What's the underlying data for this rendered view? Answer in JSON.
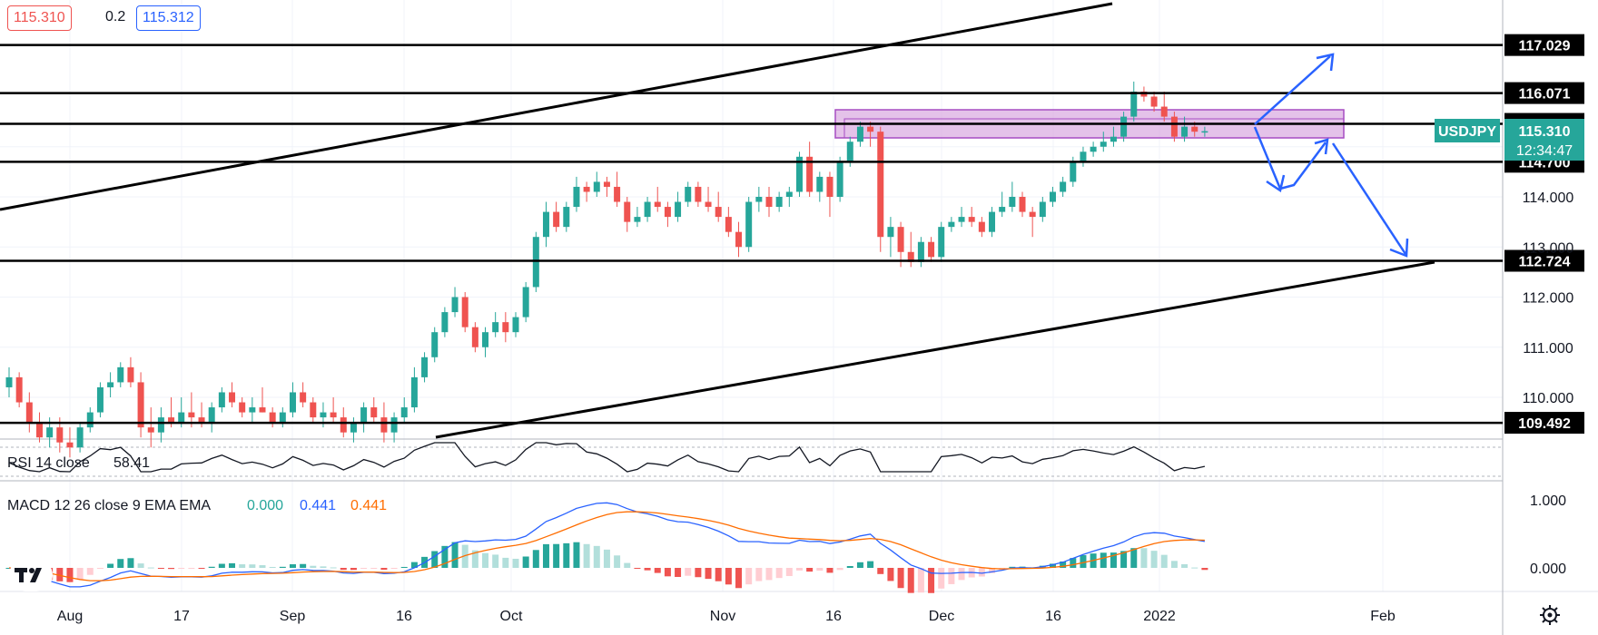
{
  "header": {
    "bid": "115.310",
    "spread": "0.2",
    "ask": "115.312"
  },
  "colors": {
    "up": "#26a69a",
    "down": "#ef5350",
    "zone_fill": "#d9a8e0",
    "zone_stroke": "#a64cc2",
    "arrow": "#2962ff",
    "macd_line": "#2962ff",
    "signal_line": "#ff6d00",
    "rsi_line": "#131722",
    "price_tag": "#26a69a"
  },
  "symbol_tag": {
    "symbol": "USDJPY",
    "price": "115.310",
    "countdown": "12:34:47"
  },
  "levels": [
    {
      "label": "117.029",
      "value": 117.029
    },
    {
      "label": "116.071",
      "value": 116.071
    },
    {
      "label": "115.456",
      "value": 115.456
    },
    {
      "label": "114.700",
      "value": 114.7
    },
    {
      "label": "112.724",
      "value": 112.724
    },
    {
      "label": "109.492",
      "value": 109.492
    }
  ],
  "price_axis_ticks": [
    "114.000",
    "113.000",
    "112.000",
    "111.000",
    "110.000"
  ],
  "time_axis_ticks": [
    "Aug",
    "17",
    "Sep",
    "16",
    "Oct",
    "Nov",
    "16",
    "Dec",
    "16",
    "2022",
    "Feb"
  ],
  "rsi": {
    "label": "RSI 14 close",
    "value": "58.41"
  },
  "macd": {
    "label": "MACD 12 26 close 9 EMA EMA",
    "hist_value": "0.000",
    "macd_value": "0.441",
    "signal_value": "0.441",
    "axis_ticks": [
      "1.000",
      "0.000"
    ]
  },
  "chart_data": {
    "type": "candlestick",
    "symbol": "USDJPY",
    "timeframe": "daily",
    "ylim": [
      108.9,
      118.0
    ],
    "candles": [
      [
        110.2,
        110.6,
        110.0,
        110.4
      ],
      [
        110.4,
        110.5,
        109.8,
        109.9
      ],
      [
        109.9,
        110.1,
        109.3,
        109.5
      ],
      [
        109.5,
        109.7,
        109.1,
        109.2
      ],
      [
        109.2,
        109.6,
        109.0,
        109.4
      ],
      [
        109.4,
        109.6,
        108.9,
        109.1
      ],
      [
        109.1,
        109.4,
        108.8,
        109.0
      ],
      [
        109.0,
        109.5,
        108.9,
        109.4
      ],
      [
        109.4,
        109.8,
        109.3,
        109.7
      ],
      [
        109.7,
        110.3,
        109.6,
        110.2
      ],
      [
        110.2,
        110.5,
        110.0,
        110.3
      ],
      [
        110.3,
        110.7,
        110.2,
        110.6
      ],
      [
        110.6,
        110.8,
        110.2,
        110.3
      ],
      [
        110.3,
        110.5,
        109.2,
        109.4
      ],
      [
        109.4,
        109.8,
        109.0,
        109.3
      ],
      [
        109.3,
        109.8,
        109.1,
        109.6
      ],
      [
        109.6,
        110.0,
        109.4,
        109.5
      ],
      [
        109.5,
        110.0,
        109.4,
        109.7
      ],
      [
        109.7,
        110.1,
        109.4,
        109.6
      ],
      [
        109.6,
        109.9,
        109.4,
        109.5
      ],
      [
        109.5,
        109.9,
        109.3,
        109.8
      ],
      [
        109.8,
        110.2,
        109.7,
        110.1
      ],
      [
        110.1,
        110.3,
        109.8,
        109.9
      ],
      [
        109.9,
        110.0,
        109.6,
        109.7
      ],
      [
        109.7,
        110.0,
        109.5,
        109.8
      ],
      [
        109.8,
        110.2,
        109.7,
        109.7
      ],
      [
        109.7,
        109.8,
        109.4,
        109.5
      ],
      [
        109.5,
        109.8,
        109.4,
        109.7
      ],
      [
        109.7,
        110.3,
        109.6,
        110.1
      ],
      [
        110.1,
        110.3,
        109.8,
        109.9
      ],
      [
        109.9,
        110.0,
        109.5,
        109.6
      ],
      [
        109.6,
        109.9,
        109.4,
        109.7
      ],
      [
        109.7,
        110.0,
        109.5,
        109.6
      ],
      [
        109.6,
        109.8,
        109.2,
        109.3
      ],
      [
        109.3,
        109.6,
        109.1,
        109.5
      ],
      [
        109.5,
        109.9,
        109.3,
        109.8
      ],
      [
        109.8,
        110.0,
        109.5,
        109.6
      ],
      [
        109.6,
        109.9,
        109.1,
        109.3
      ],
      [
        109.3,
        109.7,
        109.1,
        109.6
      ],
      [
        109.6,
        110.0,
        109.5,
        109.8
      ],
      [
        109.8,
        110.6,
        109.7,
        110.4
      ],
      [
        110.4,
        110.9,
        110.3,
        110.8
      ],
      [
        110.8,
        111.4,
        110.7,
        111.3
      ],
      [
        111.3,
        111.8,
        111.2,
        111.7
      ],
      [
        111.7,
        112.2,
        111.6,
        112.0
      ],
      [
        112.0,
        112.1,
        111.3,
        111.4
      ],
      [
        111.4,
        111.5,
        110.9,
        111.0
      ],
      [
        111.0,
        111.4,
        110.8,
        111.3
      ],
      [
        111.3,
        111.7,
        111.2,
        111.5
      ],
      [
        111.5,
        111.7,
        111.1,
        111.3
      ],
      [
        111.3,
        111.7,
        111.2,
        111.6
      ],
      [
        111.6,
        112.3,
        111.5,
        112.2
      ],
      [
        112.2,
        113.3,
        112.1,
        113.2
      ],
      [
        113.2,
        113.9,
        113.0,
        113.7
      ],
      [
        113.7,
        113.9,
        113.3,
        113.4
      ],
      [
        113.4,
        113.9,
        113.3,
        113.8
      ],
      [
        113.8,
        114.4,
        113.7,
        114.2
      ],
      [
        114.2,
        114.3,
        113.9,
        114.1
      ],
      [
        114.1,
        114.5,
        114.0,
        114.3
      ],
      [
        114.3,
        114.4,
        114.0,
        114.2
      ],
      [
        114.2,
        114.5,
        113.8,
        113.9
      ],
      [
        113.9,
        114.0,
        113.3,
        113.5
      ],
      [
        113.5,
        113.8,
        113.4,
        113.6
      ],
      [
        113.6,
        114.0,
        113.5,
        113.9
      ],
      [
        113.9,
        114.2,
        113.7,
        113.8
      ],
      [
        113.8,
        113.9,
        113.4,
        113.6
      ],
      [
        113.6,
        114.1,
        113.5,
        113.9
      ],
      [
        113.9,
        114.3,
        113.8,
        114.2
      ],
      [
        114.2,
        114.3,
        113.8,
        113.9
      ],
      [
        113.9,
        114.2,
        113.7,
        113.8
      ],
      [
        113.8,
        114.1,
        113.5,
        113.6
      ],
      [
        113.6,
        113.8,
        113.2,
        113.3
      ],
      [
        113.3,
        113.5,
        112.8,
        113.0
      ],
      [
        113.0,
        114.0,
        112.9,
        113.9
      ],
      [
        113.9,
        114.2,
        113.7,
        114.0
      ],
      [
        114.0,
        114.2,
        113.6,
        113.8
      ],
      [
        113.8,
        114.1,
        113.7,
        114.0
      ],
      [
        114.0,
        114.2,
        113.8,
        114.1
      ],
      [
        114.1,
        114.9,
        114.0,
        114.8
      ],
      [
        114.8,
        115.1,
        114.0,
        114.1
      ],
      [
        114.1,
        114.5,
        113.9,
        114.4
      ],
      [
        114.4,
        114.5,
        113.6,
        114.0
      ],
      [
        114.0,
        114.8,
        113.9,
        114.7
      ],
      [
        114.7,
        115.2,
        114.6,
        115.1
      ],
      [
        115.1,
        115.5,
        115.0,
        115.4
      ],
      [
        115.4,
        115.5,
        115.0,
        115.3
      ],
      [
        115.3,
        115.4,
        112.9,
        113.2
      ],
      [
        113.2,
        113.6,
        112.8,
        113.4
      ],
      [
        113.4,
        113.5,
        112.6,
        112.9
      ],
      [
        112.9,
        113.3,
        112.6,
        112.7
      ],
      [
        112.7,
        113.2,
        112.6,
        113.1
      ],
      [
        113.1,
        113.2,
        112.7,
        112.8
      ],
      [
        112.8,
        113.5,
        112.7,
        113.4
      ],
      [
        113.4,
        113.6,
        113.3,
        113.5
      ],
      [
        113.5,
        113.8,
        113.4,
        113.6
      ],
      [
        113.6,
        113.8,
        113.4,
        113.5
      ],
      [
        113.5,
        113.6,
        113.2,
        113.3
      ],
      [
        113.3,
        113.8,
        113.2,
        113.7
      ],
      [
        113.7,
        114.1,
        113.6,
        113.8
      ],
      [
        113.8,
        114.3,
        113.7,
        114.0
      ],
      [
        114.0,
        114.1,
        113.6,
        113.7
      ],
      [
        113.7,
        113.8,
        113.2,
        113.6
      ],
      [
        113.6,
        114.0,
        113.5,
        113.9
      ],
      [
        113.9,
        114.2,
        113.8,
        114.1
      ],
      [
        114.1,
        114.4,
        114.0,
        114.3
      ],
      [
        114.3,
        114.8,
        114.2,
        114.7
      ],
      [
        114.7,
        115.0,
        114.6,
        114.9
      ],
      [
        114.9,
        115.1,
        114.8,
        115.0
      ],
      [
        115.0,
        115.3,
        114.9,
        115.1
      ],
      [
        115.1,
        115.4,
        115.0,
        115.2
      ],
      [
        115.2,
        115.7,
        115.1,
        115.6
      ],
      [
        115.6,
        116.3,
        115.5,
        116.1
      ],
      [
        116.1,
        116.2,
        115.9,
        116.0
      ],
      [
        116.0,
        116.1,
        115.7,
        115.8
      ],
      [
        115.8,
        116.1,
        115.5,
        115.6
      ],
      [
        115.6,
        115.7,
        115.1,
        115.2
      ],
      [
        115.2,
        115.6,
        115.1,
        115.4
      ],
      [
        115.4,
        115.5,
        115.2,
        115.3
      ],
      [
        115.3,
        115.4,
        115.2,
        115.31
      ]
    ]
  }
}
